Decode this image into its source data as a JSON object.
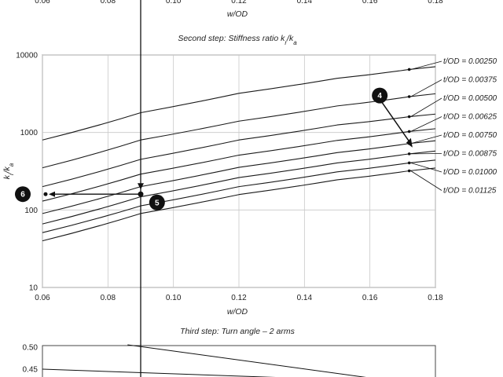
{
  "chart_data": [
    {
      "type": "line",
      "title": "",
      "xlabel": "w/OD",
      "x_ticks": [
        "0.06",
        "0.08",
        "0.10",
        "0.12",
        "0.14",
        "0.16",
        "0.18"
      ],
      "xlim": [
        0.06,
        0.18
      ],
      "partial": true
    },
    {
      "type": "line",
      "title": "Second step: Stiffness ratio k_r/k_a",
      "xlabel": "w/OD",
      "ylabel": "k_r/k_a",
      "yscale": "log",
      "xlim": [
        0.06,
        0.18
      ],
      "ylim": [
        10,
        10000
      ],
      "grid": true,
      "x_ticks": [
        "0.06",
        "0.08",
        "0.10",
        "0.12",
        "0.14",
        "0.16",
        "0.18"
      ],
      "y_ticks": [
        "10",
        "100",
        "1000",
        "10000"
      ],
      "series": [
        {
          "name": "t/OD = 0.00250",
          "x": [
            0.06,
            0.09,
            0.12,
            0.15,
            0.172
          ],
          "y": [
            800,
            1800,
            3200,
            5000,
            6500
          ]
        },
        {
          "name": "t/OD = 0.00375",
          "x": [
            0.06,
            0.09,
            0.12,
            0.15,
            0.172
          ],
          "y": [
            350,
            800,
            1400,
            2200,
            2900
          ]
        },
        {
          "name": "t/OD = 0.00500",
          "x": [
            0.06,
            0.09,
            0.12,
            0.15,
            0.172
          ],
          "y": [
            200,
            450,
            800,
            1250,
            1600
          ]
        },
        {
          "name": "t/OD = 0.00625",
          "x": [
            0.06,
            0.09,
            0.12,
            0.15,
            0.172
          ],
          "y": [
            130,
            290,
            510,
            790,
            1030
          ]
        },
        {
          "name": "t/OD = 0.00750",
          "x": [
            0.06,
            0.09,
            0.12,
            0.15,
            0.172
          ],
          "y": [
            90,
            200,
            355,
            550,
            720
          ]
        },
        {
          "name": "t/OD = 0.00875",
          "x": [
            0.06,
            0.09,
            0.12,
            0.15,
            0.172
          ],
          "y": [
            66,
            148,
            262,
            405,
            530
          ]
        },
        {
          "name": "t/OD = 0.01000",
          "x": [
            0.06,
            0.09,
            0.12,
            0.15,
            0.172
          ],
          "y": [
            51,
            113,
            200,
            310,
            405
          ]
        },
        {
          "name": "t/OD = 0.01125",
          "x": [
            0.06,
            0.09,
            0.12,
            0.15,
            0.172
          ],
          "y": [
            40,
            90,
            158,
            245,
            320
          ]
        }
      ],
      "annotations": [
        {
          "label": "4",
          "x": 0.163,
          "y": 3000
        },
        {
          "label": "5",
          "x": 0.095,
          "y": 125
        },
        {
          "label": "6",
          "x": 0.054,
          "y": 160
        }
      ],
      "reference_lines": {
        "vertical_x": 0.09,
        "horizontal_y": 160
      }
    },
    {
      "type": "line",
      "title": "Third step: Turn angle – 2 arms",
      "y_ticks": [
        "0.45",
        "0.50"
      ],
      "partial": true
    }
  ]
}
